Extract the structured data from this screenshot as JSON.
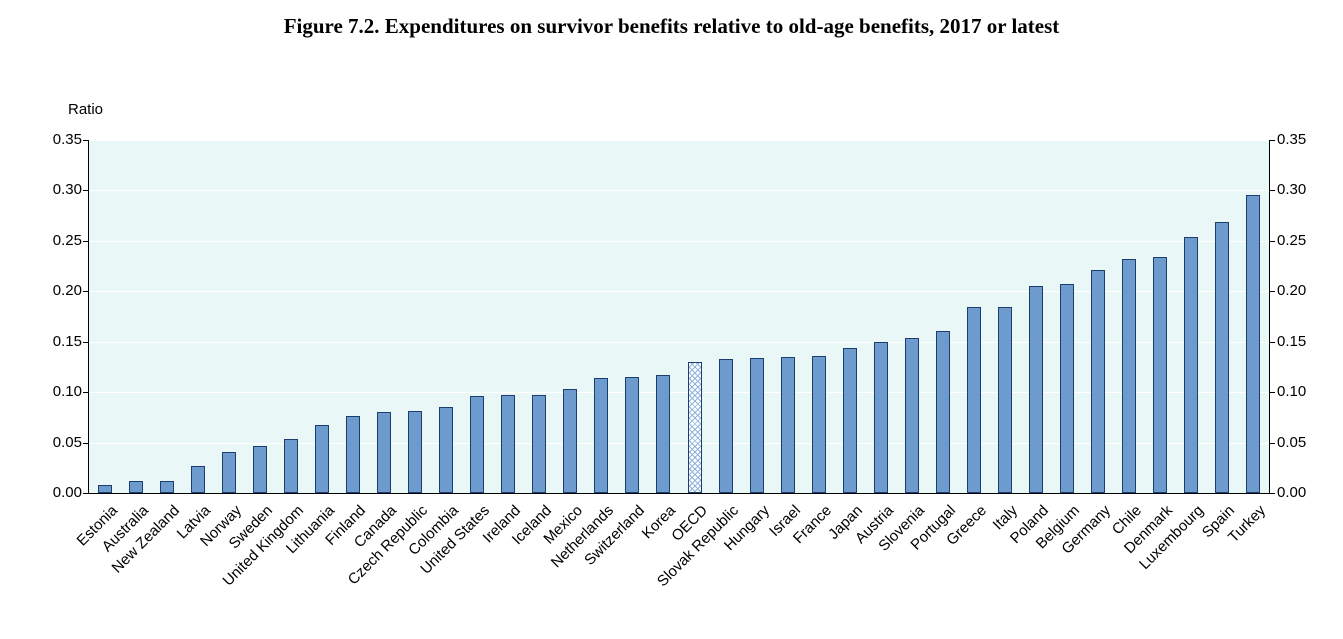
{
  "title": "Figure 7.2. Expenditures on survivor benefits relative to old-age benefits, 2017 or latest",
  "chart_data": {
    "type": "bar",
    "title": "Figure 7.2. Expenditures on survivor benefits relative to old-age benefits, 2017 or latest",
    "xlabel": "",
    "ylabel": "Ratio",
    "ylim": [
      0,
      0.35
    ],
    "yticks": [
      0,
      0.05,
      0.1,
      0.15,
      0.2,
      0.25,
      0.3,
      0.35
    ],
    "grid": true,
    "legend_position": "none",
    "highlighted_category": "OECD",
    "bar_color": "#6e9bcd",
    "bar_border_color": "#1c3e6e",
    "plot_background": "#e9f7f7",
    "categories": [
      "Estonia",
      "Australia",
      "New Zealand",
      "Latvia",
      "Norway",
      "Sweden",
      "United Kingdom",
      "Lithuania",
      "Finland",
      "Canada",
      "Czech Republic",
      "Colombia",
      "United States",
      "Ireland",
      "Iceland",
      "Mexico",
      "Netherlands",
      "Switzerland",
      "Korea",
      "OECD",
      "Slovak Republic",
      "Hungary",
      "Israel",
      "France",
      "Japan",
      "Austria",
      "Slovenia",
      "Portugal",
      "Greece",
      "Italy",
      "Poland",
      "Belgium",
      "Germany",
      "Chile",
      "Denmark",
      "Luxembourg",
      "Spain",
      "Turkey"
    ],
    "values": [
      0.008,
      0.012,
      0.012,
      0.027,
      0.041,
      0.047,
      0.054,
      0.067,
      0.076,
      0.08,
      0.081,
      0.085,
      0.096,
      0.097,
      0.097,
      0.103,
      0.114,
      0.115,
      0.117,
      0.13,
      0.133,
      0.134,
      0.135,
      0.136,
      0.144,
      0.15,
      0.154,
      0.161,
      0.184,
      0.184,
      0.205,
      0.207,
      0.221,
      0.232,
      0.234,
      0.254,
      0.269,
      0.295
    ]
  }
}
